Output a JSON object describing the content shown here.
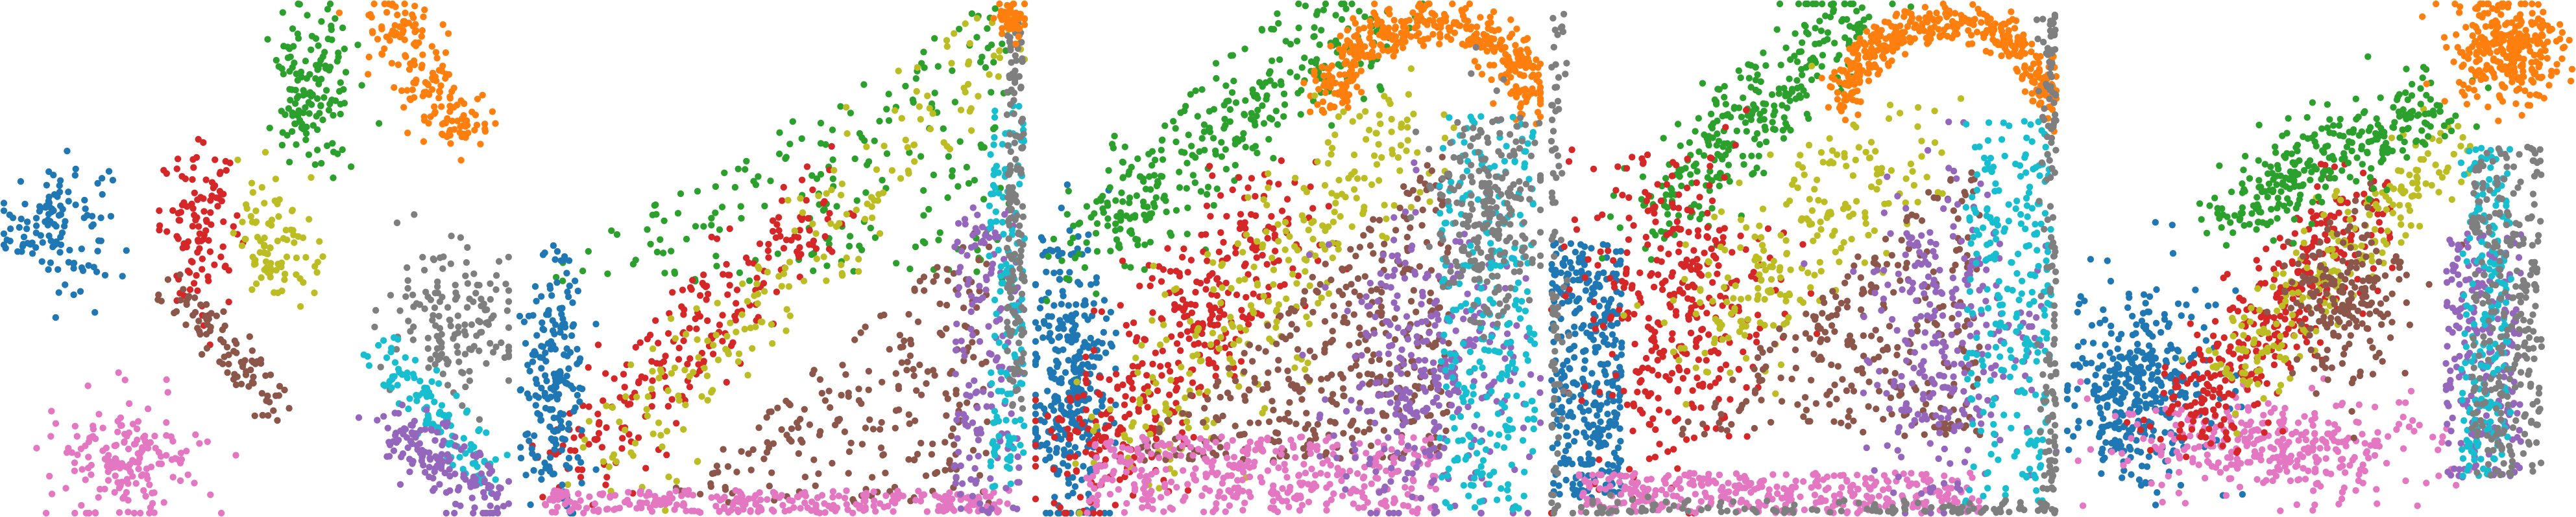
{
  "figure": {
    "panel_count": 5,
    "axes_visible": false,
    "grid": false,
    "legend": "none"
  },
  "palette": {
    "c0": "#1f77b4",
    "c1": "#ff7f0e",
    "c2": "#2ca02c",
    "c3": "#d62728",
    "c4": "#9467bd",
    "c5": "#8c564b",
    "c6": "#e377c2",
    "c7": "#7f7f7f",
    "c8": "#bcbd22",
    "c9": "#17becf"
  },
  "chart_data": [
    {
      "type": "scatter",
      "xlim": [
        0,
        1
      ],
      "ylim": [
        0,
        1
      ],
      "clusters": [
        {
          "cluster": "c0",
          "n": 120,
          "shape": "blob",
          "cx": 0.1,
          "cy": 0.57,
          "sx": 0.055,
          "sy": 0.065
        },
        {
          "cluster": "c3",
          "n": 110,
          "shape": "blob",
          "cx": 0.39,
          "cy": 0.56,
          "sx": 0.04,
          "sy": 0.075
        },
        {
          "cluster": "c8",
          "n": 90,
          "shape": "blob",
          "cx": 0.54,
          "cy": 0.53,
          "sx": 0.04,
          "sy": 0.06
        },
        {
          "cluster": "c5",
          "n": 90,
          "shape": "line",
          "x0": 0.34,
          "y0": 0.44,
          "x1": 0.55,
          "y1": 0.2,
          "spread": 0.02
        },
        {
          "cluster": "c6",
          "n": 170,
          "shape": "blob",
          "cx": 0.25,
          "cy": 0.1,
          "sx": 0.075,
          "sy": 0.06
        },
        {
          "cluster": "c2",
          "n": 140,
          "shape": "blob",
          "cx": 0.61,
          "cy": 0.84,
          "sx": 0.042,
          "sy": 0.085
        },
        {
          "cluster": "c1",
          "n": 170,
          "shape": "line",
          "x0": 0.76,
          "y0": 0.99,
          "x1": 0.92,
          "y1": 0.73,
          "spread": 0.035
        },
        {
          "cluster": "c7",
          "n": 150,
          "shape": "blob",
          "cx": 0.89,
          "cy": 0.39,
          "sx": 0.065,
          "sy": 0.075
        },
        {
          "cluster": "c9",
          "n": 110,
          "shape": "line",
          "x0": 0.74,
          "y0": 0.32,
          "x1": 0.97,
          "y1": 0.07,
          "spread": 0.025
        },
        {
          "cluster": "c4",
          "n": 150,
          "shape": "line",
          "x0": 0.76,
          "y0": 0.18,
          "x1": 0.97,
          "y1": 0.02,
          "spread": 0.03
        }
      ]
    },
    {
      "type": "scatter",
      "xlim": [
        0,
        1
      ],
      "ylim": [
        0,
        1
      ],
      "clusters": [
        {
          "cluster": "c2",
          "n": 200,
          "shape": "tri",
          "x0": 0.05,
          "x1": 0.97,
          "y0": 0.45,
          "y1": 1.0
        },
        {
          "cluster": "c3",
          "n": 230,
          "shape": "line",
          "x0": 0.08,
          "y0": 0.08,
          "x1": 0.62,
          "y1": 0.62,
          "spread": 0.045
        },
        {
          "cluster": "c8",
          "n": 200,
          "shape": "line",
          "x0": 0.15,
          "y0": 0.05,
          "x1": 0.97,
          "y1": 0.95,
          "spread": 0.05
        },
        {
          "cluster": "c5",
          "n": 230,
          "shape": "tri",
          "x0": 0.3,
          "x1": 0.93,
          "y0": 0.02,
          "y1": 0.55
        },
        {
          "cluster": "c0",
          "n": 200,
          "shape": "blob",
          "cx": 0.07,
          "cy": 0.25,
          "sx": 0.035,
          "sy": 0.13
        },
        {
          "cluster": "c6",
          "n": 280,
          "shape": "band",
          "x0": 0.05,
          "x1": 0.97,
          "y0": 0.0,
          "y1": 0.045
        },
        {
          "cluster": "c4",
          "n": 160,
          "shape": "band",
          "x0": 0.86,
          "x1": 0.99,
          "y0": 0.0,
          "y1": 0.6
        },
        {
          "cluster": "c9",
          "n": 140,
          "shape": "band",
          "x0": 0.93,
          "x1": 1.0,
          "y0": 0.05,
          "y1": 0.8
        },
        {
          "cluster": "c7",
          "n": 160,
          "shape": "band",
          "x0": 0.965,
          "x1": 1.0,
          "y0": 0.2,
          "y1": 0.97
        },
        {
          "cluster": "c1",
          "n": 60,
          "shape": "blob",
          "cx": 0.97,
          "cy": 0.97,
          "sx": 0.015,
          "sy": 0.02
        }
      ]
    },
    {
      "type": "scatter",
      "xlim": [
        0,
        1
      ],
      "ylim": [
        0,
        1
      ],
      "clusters": [
        {
          "cluster": "c0",
          "n": 330,
          "shape": "blob",
          "cx": 0.07,
          "cy": 0.25,
          "sx": 0.04,
          "sy": 0.15
        },
        {
          "cluster": "c2",
          "n": 330,
          "shape": "line",
          "x0": 0.08,
          "y0": 0.52,
          "x1": 0.65,
          "y1": 0.97,
          "spread": 0.05
        },
        {
          "cluster": "c1",
          "n": 380,
          "shape": "arc",
          "cx": 0.78,
          "cy": 0.8,
          "r": 0.18,
          "a0": 0.0,
          "a1": 3.14,
          "spread": 0.025
        },
        {
          "cluster": "c3",
          "n": 380,
          "shape": "line",
          "x0": 0.08,
          "y0": 0.08,
          "x1": 0.5,
          "y1": 0.6,
          "spread": 0.07
        },
        {
          "cluster": "c8",
          "n": 270,
          "shape": "line",
          "x0": 0.2,
          "y0": 0.12,
          "x1": 0.75,
          "y1": 0.8,
          "spread": 0.07
        },
        {
          "cluster": "c5",
          "n": 380,
          "shape": "tri",
          "x0": 0.2,
          "x1": 0.82,
          "y0": 0.1,
          "y1": 0.7
        },
        {
          "cluster": "c6",
          "n": 380,
          "shape": "band",
          "x0": 0.1,
          "x1": 0.8,
          "y0": 0.0,
          "y1": 0.15
        },
        {
          "cluster": "c4",
          "n": 330,
          "shape": "blob",
          "cx": 0.78,
          "cy": 0.28,
          "sx": 0.09,
          "sy": 0.15
        },
        {
          "cluster": "c9",
          "n": 280,
          "shape": "band",
          "x0": 0.8,
          "x1": 0.99,
          "y0": 0.0,
          "y1": 0.78
        },
        {
          "cluster": "c7",
          "n": 230,
          "shape": "blob",
          "cx": 0.9,
          "cy": 0.6,
          "sx": 0.05,
          "sy": 0.12
        }
      ]
    },
    {
      "type": "scatter",
      "xlim": [
        0,
        1
      ],
      "ylim": [
        0,
        1
      ],
      "clusters": [
        {
          "cluster": "c0",
          "n": 330,
          "shape": "band",
          "x0": 0.0,
          "x1": 0.14,
          "y0": 0.03,
          "y1": 0.53
        },
        {
          "cluster": "c2",
          "n": 300,
          "shape": "line",
          "x0": 0.2,
          "y0": 0.58,
          "x1": 0.6,
          "y1": 0.98,
          "spread": 0.045
        },
        {
          "cluster": "c1",
          "n": 380,
          "shape": "arc",
          "cx": 0.78,
          "cy": 0.8,
          "r": 0.18,
          "a0": 0.0,
          "a1": 3.14,
          "spread": 0.02
        },
        {
          "cluster": "c3",
          "n": 350,
          "shape": "blob",
          "cx": 0.25,
          "cy": 0.4,
          "sx": 0.1,
          "sy": 0.16
        },
        {
          "cluster": "c8",
          "n": 230,
          "shape": "line",
          "x0": 0.3,
          "y0": 0.35,
          "x1": 0.7,
          "y1": 0.75,
          "spread": 0.07
        },
        {
          "cluster": "c5",
          "n": 280,
          "shape": "tri",
          "x0": 0.25,
          "x1": 0.85,
          "y0": 0.15,
          "y1": 0.7
        },
        {
          "cluster": "c6",
          "n": 350,
          "shape": "band",
          "x0": 0.05,
          "x1": 0.85,
          "y0": 0.0,
          "y1": 0.08
        },
        {
          "cluster": "c4",
          "n": 280,
          "shape": "blob",
          "cx": 0.78,
          "cy": 0.35,
          "sx": 0.08,
          "sy": 0.15
        },
        {
          "cluster": "c9",
          "n": 250,
          "shape": "band",
          "x0": 0.82,
          "x1": 0.99,
          "y0": 0.02,
          "y1": 0.78
        },
        {
          "cluster": "c7",
          "n": 350,
          "shape": "frame",
          "x0": 0.0,
          "x1": 1.0,
          "y0": 0.0,
          "y1": 0.98,
          "r": 0.14
        }
      ]
    },
    {
      "type": "scatter",
      "xlim": [
        0,
        1
      ],
      "ylim": [
        0,
        1
      ],
      "clusters": [
        {
          "cluster": "c0",
          "n": 360,
          "shape": "blob",
          "cx": 0.14,
          "cy": 0.25,
          "sx": 0.07,
          "sy": 0.1
        },
        {
          "cluster": "c6",
          "n": 330,
          "shape": "blob",
          "cx": 0.4,
          "cy": 0.13,
          "sx": 0.15,
          "sy": 0.05
        },
        {
          "cluster": "c3",
          "n": 350,
          "shape": "line",
          "x0": 0.22,
          "y0": 0.15,
          "x1": 0.6,
          "y1": 0.63,
          "spread": 0.05
        },
        {
          "cluster": "c8",
          "n": 230,
          "shape": "line",
          "x0": 0.3,
          "y0": 0.25,
          "x1": 0.75,
          "y1": 0.72,
          "spread": 0.04
        },
        {
          "cluster": "c5",
          "n": 200,
          "shape": "blob",
          "cx": 0.55,
          "cy": 0.42,
          "sx": 0.06,
          "sy": 0.08
        },
        {
          "cluster": "c2",
          "n": 300,
          "shape": "line",
          "x0": 0.3,
          "y0": 0.58,
          "x1": 0.75,
          "y1": 0.82,
          "spread": 0.04
        },
        {
          "cluster": "c1",
          "n": 300,
          "shape": "blob",
          "cx": 0.87,
          "cy": 0.91,
          "sx": 0.055,
          "sy": 0.05
        },
        {
          "cluster": "c4",
          "n": 230,
          "shape": "band",
          "x0": 0.75,
          "x1": 0.9,
          "y0": 0.07,
          "y1": 0.55
        },
        {
          "cluster": "c9",
          "n": 200,
          "shape": "band",
          "x0": 0.78,
          "x1": 0.88,
          "y0": 0.07,
          "y1": 0.72
        },
        {
          "cluster": "c7",
          "n": 280,
          "shape": "band",
          "x0": 0.8,
          "x1": 0.94,
          "y0": 0.07,
          "y1": 0.72
        }
      ]
    }
  ]
}
